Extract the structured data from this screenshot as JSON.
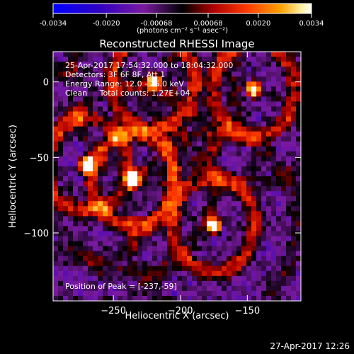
{
  "window": {
    "title": "Reconstructed RHESSI Image",
    "footer_timestamp": "27-Apr-2017 12:26"
  },
  "colorbar": {
    "ticks": [
      "-0.0034",
      "-0.0020",
      "-0.00068",
      "0.00068",
      "0.0020",
      "0.0034"
    ],
    "unit_label": "(photons cm⁻² s⁻¹ asec⁻²)",
    "range": [
      -0.0034,
      0.0034
    ],
    "colors": [
      "#0000ff",
      "#3000c0",
      "#7a1aa0",
      "#000000",
      "#b00000",
      "#ff3a00",
      "#ffa000",
      "#fff0a0",
      "#ffffff"
    ]
  },
  "annotations": {
    "time_range": "25-Apr-2017 17:54:32.000 to 18:04:32.000",
    "detectors": "Detectors: 3F 6F 8F, Att 1",
    "energy": "Energy Range: 12.0 - 25.0 keV",
    "method": "Clean     Total counts: 1.27E+04",
    "peak": "Position of Peak = [-237,-59]"
  },
  "chart_data": {
    "type": "heatmap",
    "title": "Reconstructed RHESSI Image",
    "xlabel": "Heliocentric X (arcsec)",
    "ylabel": "Heliocentric Y (arcsec)",
    "xlim": [
      -295,
      -110
    ],
    "ylim": [
      -145,
      20
    ],
    "xticks": [
      -250,
      -200,
      -150
    ],
    "yticks": [
      0,
      -50,
      -100
    ],
    "peak": [
      -237,
      -59
    ],
    "bright_sources": [
      {
        "x": -270,
        "y": -55
      },
      {
        "x": -235,
        "y": -65
      },
      {
        "x": -220,
        "y": 0
      },
      {
        "x": -145,
        "y": -5
      },
      {
        "x": -175,
        "y": -95
      }
    ],
    "color_scale": "red-temperature with blue negative"
  }
}
